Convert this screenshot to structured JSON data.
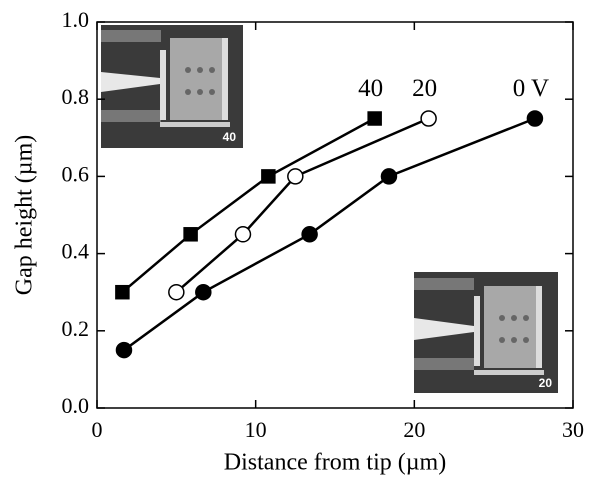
{
  "chart_data": {
    "type": "line",
    "x_label": "Distance from tip (µm)",
    "y_label": "Gap height (µm)",
    "xlim": [
      0,
      30
    ],
    "xticks": [
      0,
      10,
      20,
      30
    ],
    "ylim": [
      0,
      1.0
    ],
    "yticks": [
      {
        "value": 0,
        "label": "0.0"
      },
      0.2,
      0.4,
      0.6,
      0.8,
      {
        "value": 1,
        "label": "1.0"
      }
    ],
    "series": [
      {
        "name": "40",
        "color": "#000000",
        "marker": "square",
        "fill": "#000000",
        "x": [
          1.6,
          5.9,
          10.8,
          17.5
        ],
        "values": [
          0.3,
          0.45,
          0.6,
          0.75
        ]
      },
      {
        "name": "20",
        "color": "#000000",
        "marker": "circle",
        "fill": "#ffffff",
        "x": [
          5.0,
          9.2,
          12.5,
          20.9
        ],
        "values": [
          0.3,
          0.45,
          0.6,
          0.75
        ]
      },
      {
        "name": "0 V",
        "color": "#000000",
        "marker": "circle",
        "fill": "#000000",
        "x": [
          1.7,
          6.7,
          13.4,
          18.4,
          27.6
        ],
        "values": [
          0.15,
          0.3,
          0.45,
          0.6,
          0.75
        ]
      }
    ],
    "insets": [
      {
        "label": "40"
      },
      {
        "label": "20"
      }
    ]
  }
}
